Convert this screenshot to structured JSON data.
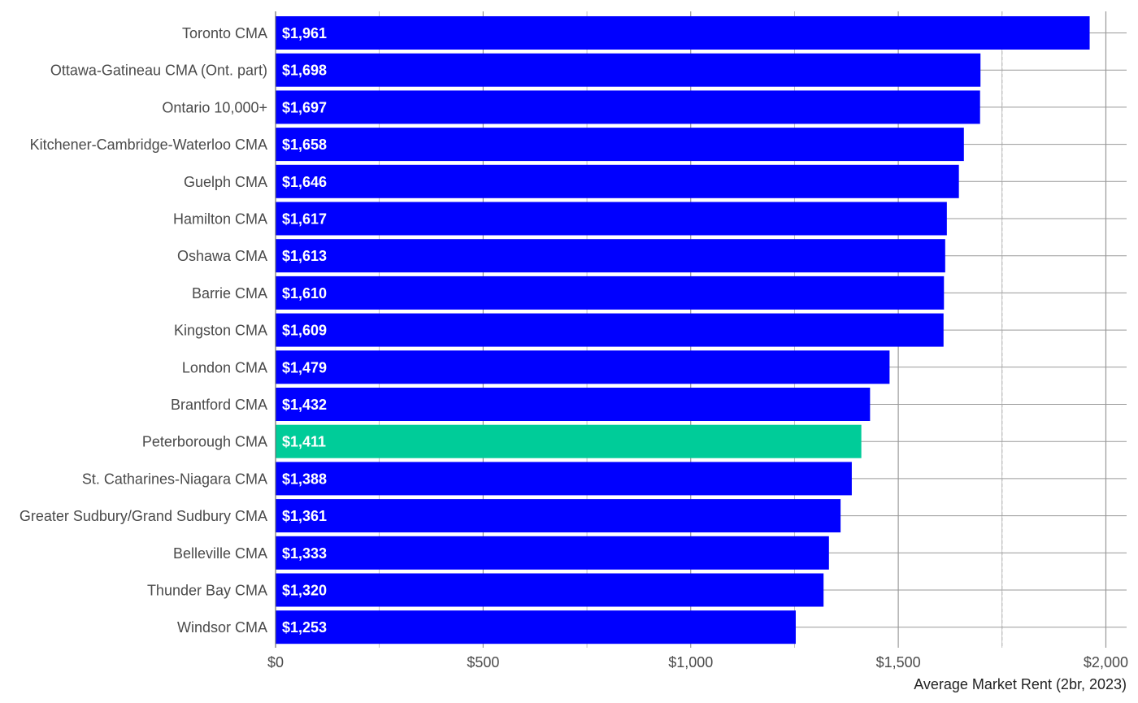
{
  "chart_data": {
    "type": "bar",
    "orientation": "horizontal",
    "categories": [
      "Toronto CMA",
      "Ottawa-Gatineau CMA (Ont. part)",
      "Ontario 10,000+",
      "Kitchener-Cambridge-Waterloo CMA",
      "Guelph CMA",
      "Hamilton CMA",
      "Oshawa CMA",
      "Barrie CMA",
      "Kingston CMA",
      "London CMA",
      "Brantford CMA",
      "Peterborough CMA",
      "St. Catharines-Niagara CMA",
      "Greater Sudbury/Grand Sudbury CMA",
      "Belleville CMA",
      "Thunder Bay CMA",
      "Windsor CMA"
    ],
    "values": [
      1961,
      1698,
      1697,
      1658,
      1646,
      1617,
      1613,
      1610,
      1609,
      1479,
      1432,
      1411,
      1388,
      1361,
      1333,
      1320,
      1253
    ],
    "value_labels": [
      "$1,961",
      "$1,698",
      "$1,697",
      "$1,658",
      "$1,646",
      "$1,617",
      "$1,613",
      "$1,610",
      "$1,609",
      "$1,479",
      "$1,432",
      "$1,411",
      "$1,388",
      "$1,361",
      "$1,333",
      "$1,320",
      "$1,253"
    ],
    "highlight": "Peterborough CMA",
    "xlabel": "Average Market Rent (2br, 2023)",
    "ylabel": "",
    "xlim": [
      0,
      2050
    ],
    "x_ticks": [
      0,
      500,
      1000,
      1500,
      2000
    ],
    "x_tick_labels": [
      "$0",
      "$500",
      "$1,000",
      "$1,500",
      "$2,000"
    ],
    "reference_line": 1750,
    "grid": true,
    "colors": {
      "bar": "#0000ff",
      "highlight": "#00cc99",
      "grid": "#999999",
      "axis_text": "#4a4a4a",
      "value_text": "#ffffff"
    }
  }
}
